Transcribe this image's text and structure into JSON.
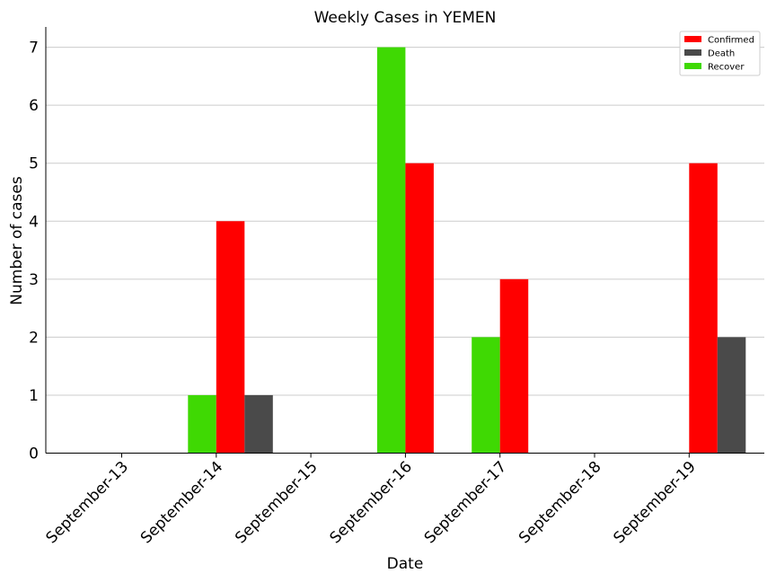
{
  "chart_data": {
    "type": "bar",
    "title": "Weekly Cases in YEMEN",
    "xlabel": "Date",
    "ylabel": "Number of cases",
    "categories": [
      "September-13",
      "September-14",
      "September-15",
      "September-16",
      "September-17",
      "September-18",
      "September-19"
    ],
    "series": [
      {
        "name": "Recover",
        "color": "#3fd903",
        "values": [
          0,
          1,
          0,
          7,
          2,
          0,
          0
        ]
      },
      {
        "name": "Confirmed",
        "color": "#ff0000",
        "values": [
          0,
          4,
          0,
          5,
          3,
          0,
          5
        ]
      },
      {
        "name": "Death",
        "color": "#4a4a4a",
        "values": [
          0,
          1,
          0,
          0,
          0,
          0,
          2
        ]
      }
    ],
    "legend_order": [
      "Confirmed",
      "Death",
      "Recover"
    ],
    "legend_position": "top-right",
    "ylim": [
      0,
      7.35
    ],
    "yticks": [
      0,
      1,
      2,
      3,
      4,
      5,
      6,
      7
    ],
    "grid": "horizontal"
  }
}
